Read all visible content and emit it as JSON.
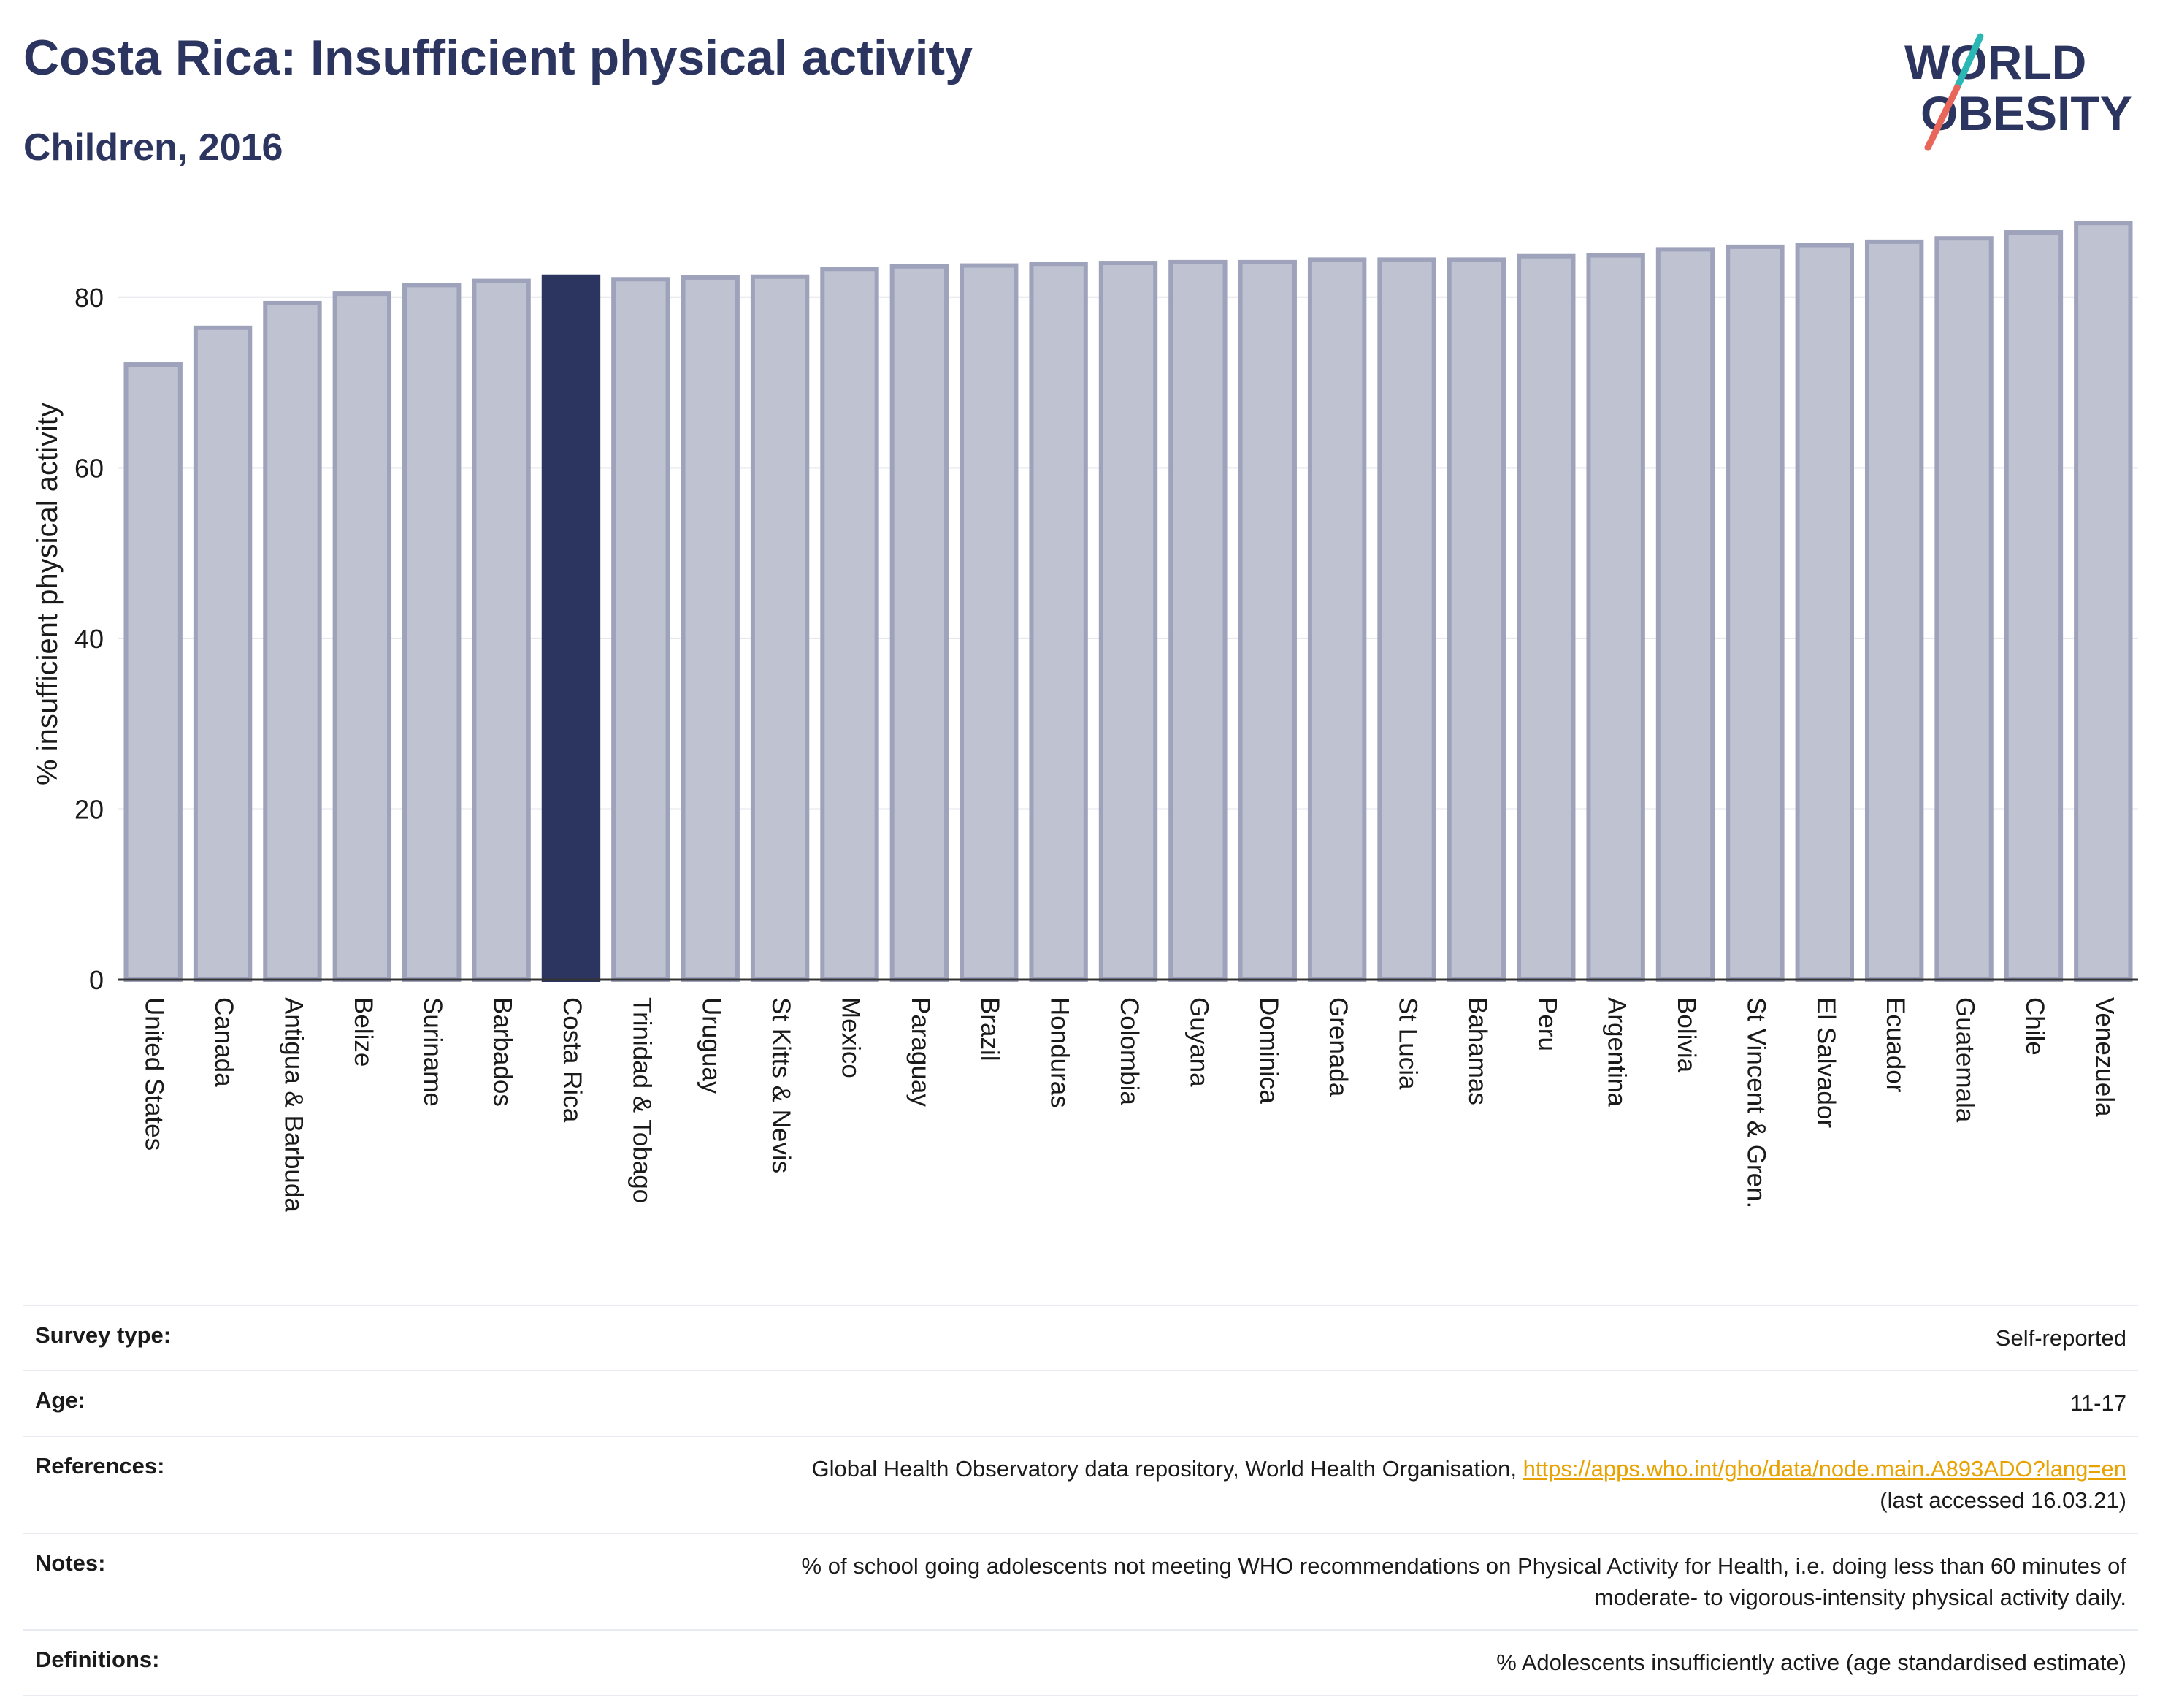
{
  "header": {
    "title": "Costa Rica: Insufficient physical activity",
    "subtitle": "Children, 2016"
  },
  "logo": {
    "line1": "WORLD",
    "line2": "OBESITY"
  },
  "colors": {
    "highlight": "#2b3560",
    "bar": "#bfc2d1",
    "bar_border": "#9ea3bb",
    "accent_teal": "#2bb7b3",
    "accent_coral": "#e8675a"
  },
  "chart_data": {
    "type": "bar",
    "title": "Costa Rica: Insufficient physical activity",
    "subtitle": "Children, 2016",
    "xlabel": "",
    "ylabel": "% insufficient physical activity",
    "ylim": [
      0,
      90
    ],
    "yticks": [
      0,
      20,
      40,
      60,
      80
    ],
    "grid": true,
    "highlight": "Costa Rica",
    "categories": [
      "United States",
      "Canada",
      "Antigua & Barbuda",
      "Belize",
      "Suriname",
      "Barbados",
      "Costa Rica",
      "Trinidad & Tobago",
      "Uruguay",
      "St Kitts & Nevis",
      "Mexico",
      "Paraguay",
      "Brazil",
      "Honduras",
      "Colombia",
      "Guyana",
      "Dominica",
      "Grenada",
      "St Lucia",
      "Bahamas",
      "Peru",
      "Argentina",
      "Bolivia",
      "St Vincent & Gren.",
      "El Salvador",
      "Ecuador",
      "Guatemala",
      "Chile",
      "Venezuela"
    ],
    "values": [
      72.1,
      76.4,
      79.3,
      80.4,
      81.4,
      81.9,
      82.4,
      82.1,
      82.3,
      82.4,
      83.3,
      83.6,
      83.7,
      83.9,
      84.0,
      84.1,
      84.1,
      84.4,
      84.4,
      84.4,
      84.8,
      84.9,
      85.6,
      85.9,
      86.1,
      86.5,
      86.9,
      87.6,
      88.7
    ]
  },
  "info": {
    "survey_type_label": "Survey type:",
    "survey_type": "Self-reported",
    "age_label": "Age:",
    "age": "11-17",
    "references_label": "References:",
    "references_text": "Global Health Observatory data repository, World Health Organisation,",
    "references_link": "https://apps.who.int/gho/data/node.main.A893ADO?lang=en",
    "references_note": "(last accessed 16.03.21)",
    "notes_label": "Notes:",
    "notes_line1": "% of school going adolescents not meeting WHO recommendations on Physical Activity for Health, i.e. doing less than 60 minutes of",
    "notes_line2": "moderate- to vigorous-intensity physical activity daily.",
    "definitions_label": "Definitions:",
    "definitions": "% Adolescents insufficiently active (age standardised estimate)"
  }
}
